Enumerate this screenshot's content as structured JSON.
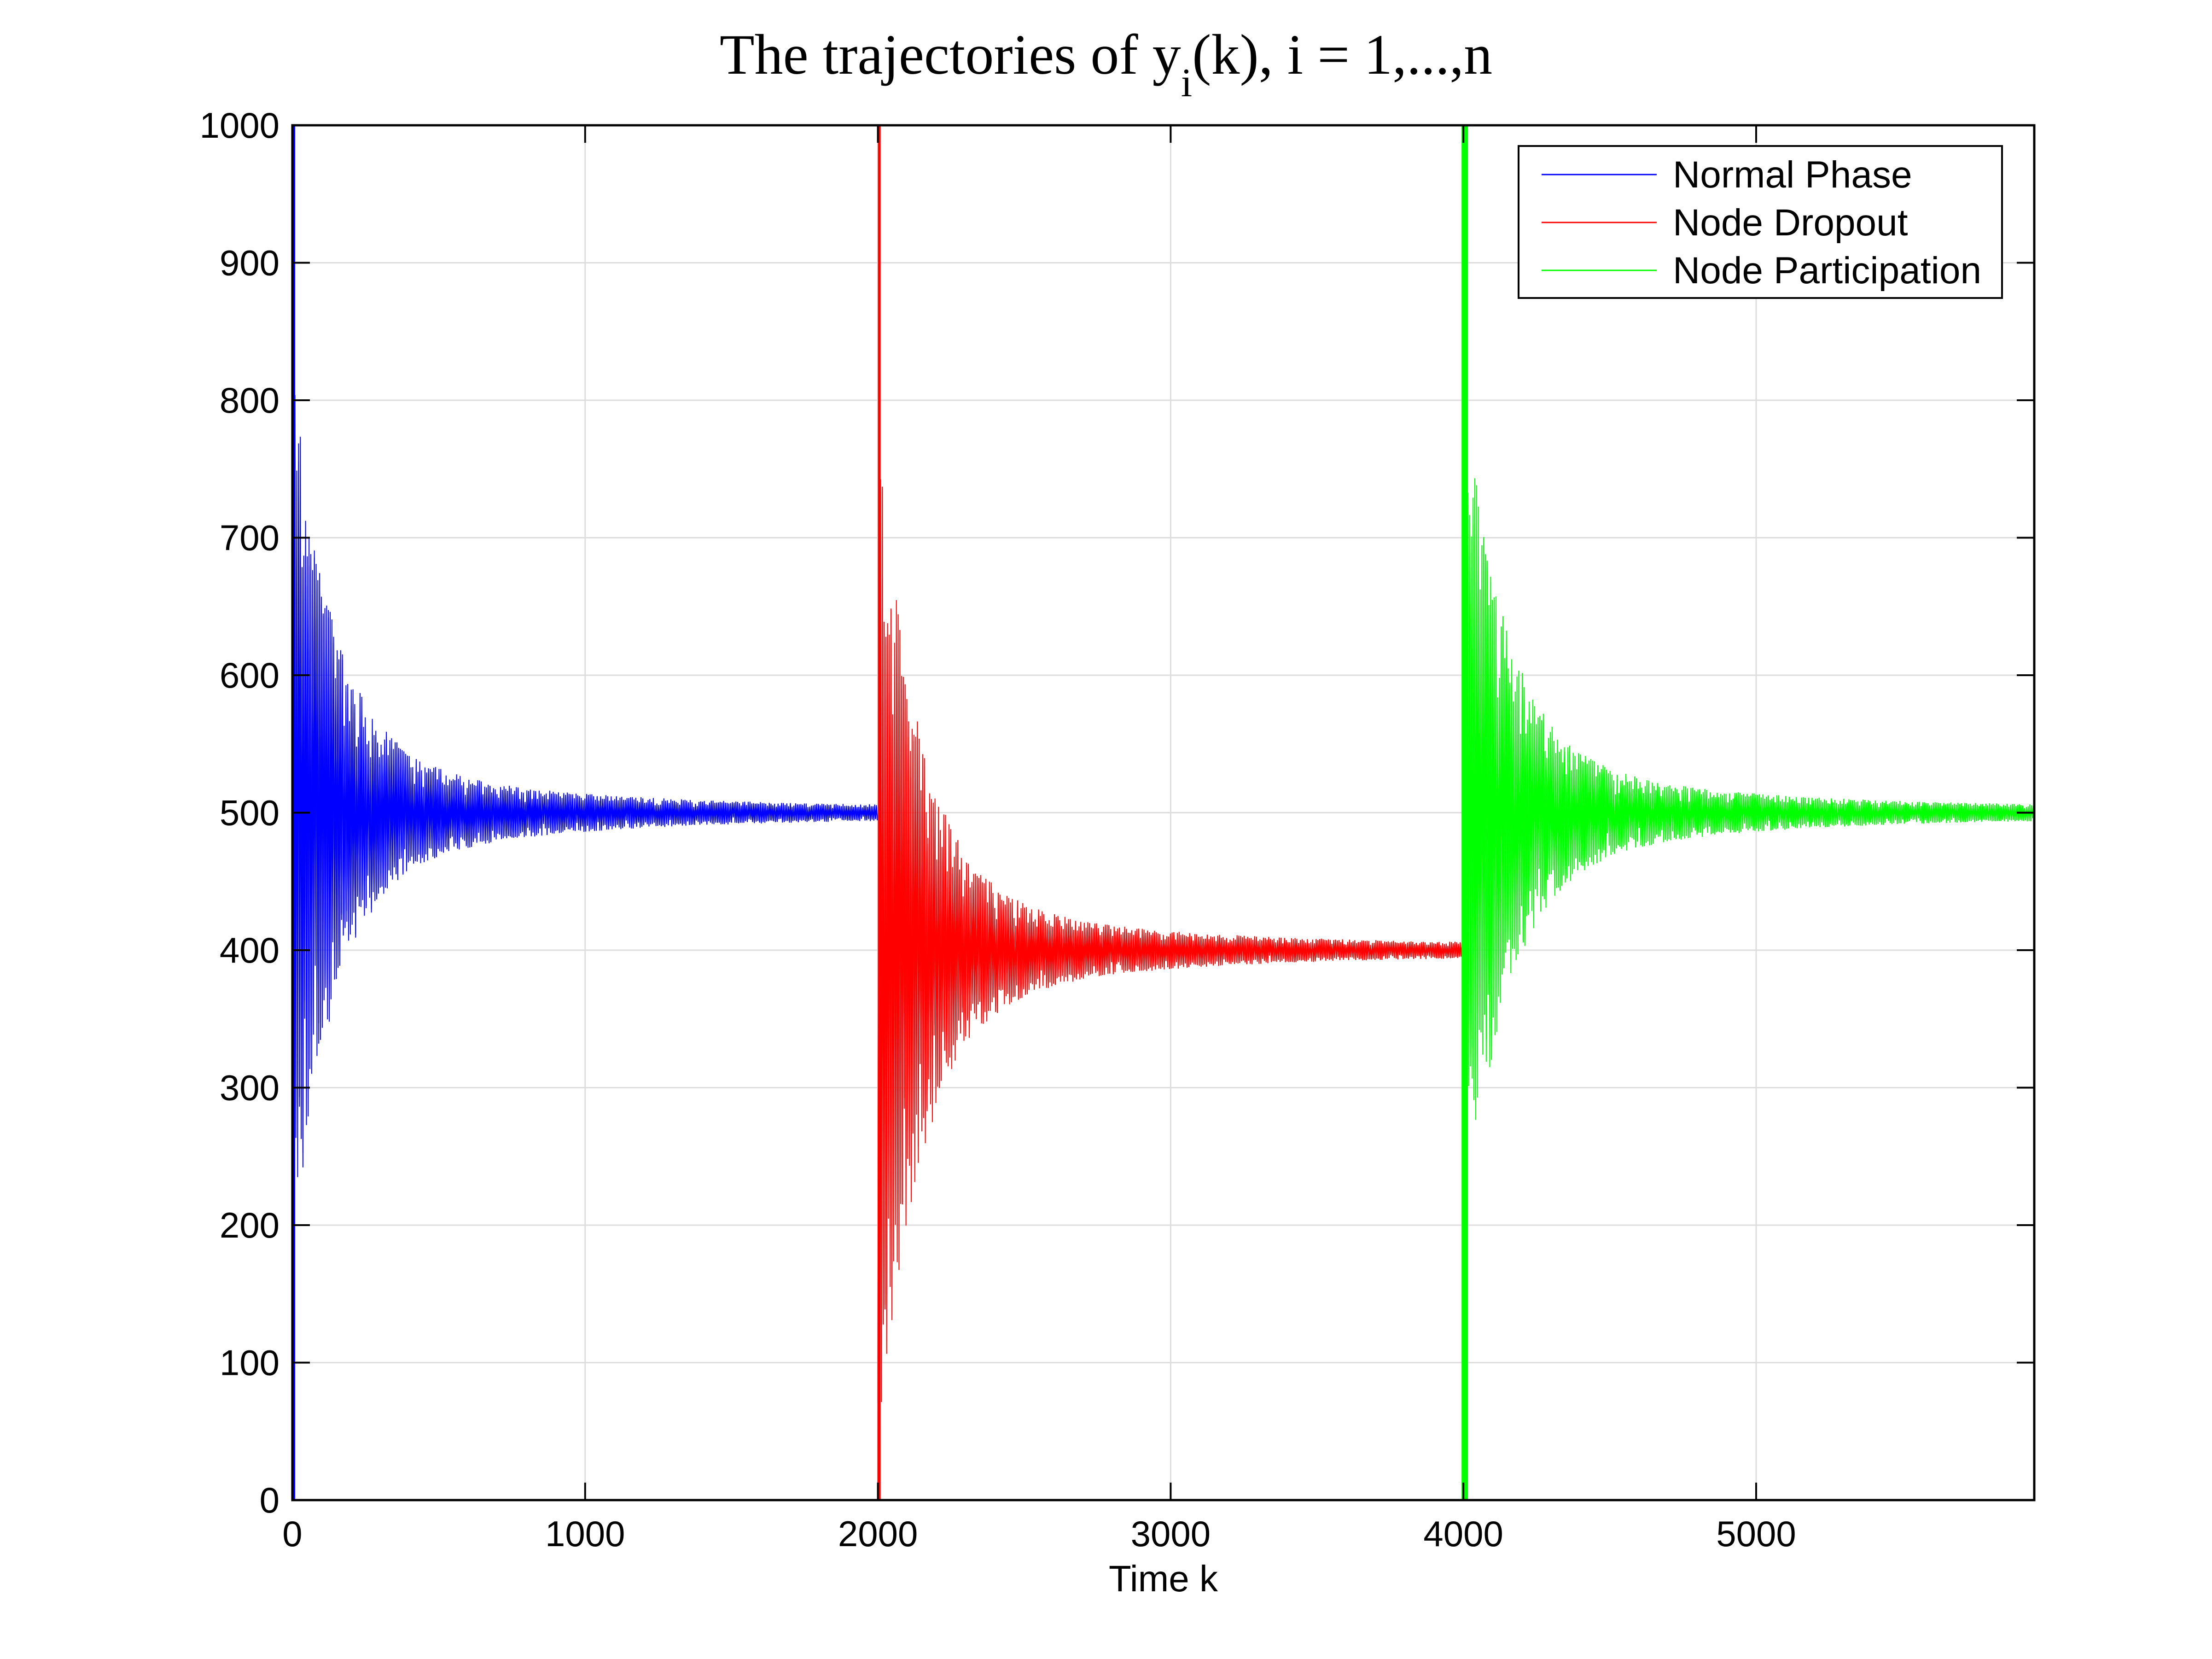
{
  "chart_data": {
    "type": "line",
    "title": {
      "prefix": "The trajectories of y",
      "subscript": "i",
      "suffix": "(k), i = 1,...,n"
    },
    "xlabel": "Time k",
    "ylabel": "",
    "xlim": [
      0,
      5950
    ],
    "ylim": [
      0,
      1000
    ],
    "x_ticks": [
      0,
      1000,
      2000,
      3000,
      4000,
      5000
    ],
    "y_ticks": [
      0,
      100,
      200,
      300,
      400,
      500,
      600,
      700,
      800,
      900,
      1000
    ],
    "grid": true,
    "legend_position": "top-right",
    "series": [
      {
        "name": "Normal Phase",
        "color": "#0000ff",
        "x_range": [
          0,
          2000
        ],
        "steady_value": 500,
        "initial_spread": [
          0,
          1000
        ],
        "settled_spread_at_end": 5
      },
      {
        "name": "Node Dropout",
        "color": "#ff0000",
        "x_range": [
          2000,
          4000
        ],
        "steady_value": 400,
        "initial_spread": [
          0,
          1000
        ],
        "settled_spread_at_end": 5
      },
      {
        "name": "Node Participation",
        "color": "#00ff00",
        "x_range": [
          4000,
          5950
        ],
        "steady_value": 500,
        "initial_spread": [
          0,
          1000
        ],
        "settled_spread_at_end": 5
      }
    ]
  }
}
